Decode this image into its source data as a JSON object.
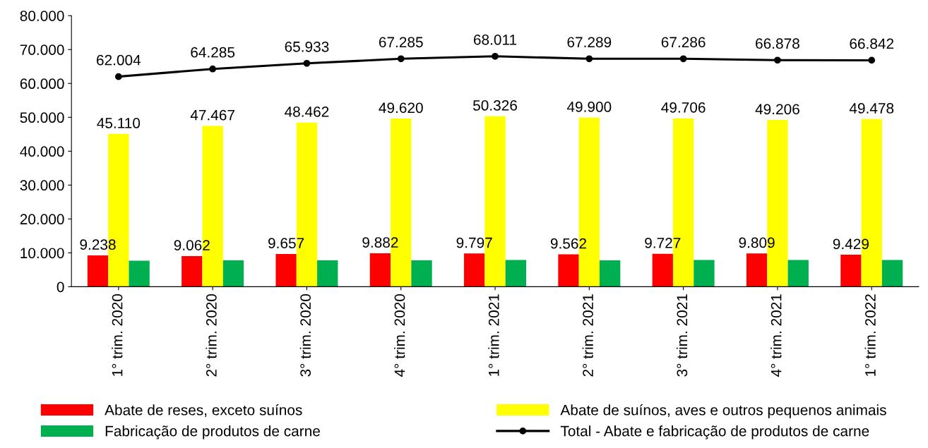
{
  "chart_data": {
    "type": "bar",
    "categories": [
      "1° trim. 2020",
      "2° trim. 2020",
      "3° trim. 2020",
      "4° trim. 2020",
      "1° trim. 2021",
      "2° trim. 2021",
      "3° trim. 2021",
      "4° trim. 2021",
      "1° trim. 2022"
    ],
    "series": [
      {
        "name": "Abate de reses, exceto suínos",
        "color": "#ff0000",
        "values": [
          9238,
          9062,
          9657,
          9882,
          9797,
          9562,
          9727,
          9809,
          9429
        ],
        "value_labels": [
          "9.238",
          "9.062",
          "9.657",
          "9.882",
          "9.797",
          "9.562",
          "9.727",
          "9.809",
          "9.429"
        ]
      },
      {
        "name": "Abate de suínos, aves e outros pequenos animais",
        "color": "#ffff00",
        "values": [
          45110,
          47467,
          48462,
          49620,
          50326,
          49900,
          49706,
          49206,
          49478
        ],
        "value_labels": [
          "45.110",
          "47.467",
          "48.462",
          "49.620",
          "50.326",
          "49.900",
          "49.706",
          "49.206",
          "49.478"
        ]
      },
      {
        "name": "Fabricação de produtos de carne",
        "color": "#00b050",
        "values": [
          7700,
          7800,
          7800,
          7800,
          7900,
          7800,
          7900,
          7900,
          7900
        ]
      },
      {
        "name": "Total - Abate e fabricação de produtos de carne",
        "color": "#000000",
        "type": "line",
        "marker": "circle",
        "values": [
          62004,
          64285,
          65933,
          67285,
          68011,
          67289,
          67286,
          66878,
          66842
        ],
        "value_labels": [
          "62.004",
          "64.285",
          "65.933",
          "67.285",
          "68.011",
          "67.289",
          "67.286",
          "66.878",
          "66.842"
        ]
      }
    ],
    "ylim": [
      0,
      80000
    ],
    "yticks": [
      0,
      {
        "value": 10000,
        "label": "10.000"
      },
      {
        "value": 20000,
        "label": "20.000"
      },
      {
        "value": 30000,
        "label": "30.000"
      },
      {
        "value": 40000,
        "label": "40.000"
      },
      {
        "value": 50000,
        "label": "50.000"
      },
      {
        "value": 60000,
        "label": "60.000"
      },
      {
        "value": 70000,
        "label": "70.000"
      },
      {
        "value": 80000,
        "label": "80.000"
      }
    ],
    "grid": false,
    "legend": "bottom"
  }
}
